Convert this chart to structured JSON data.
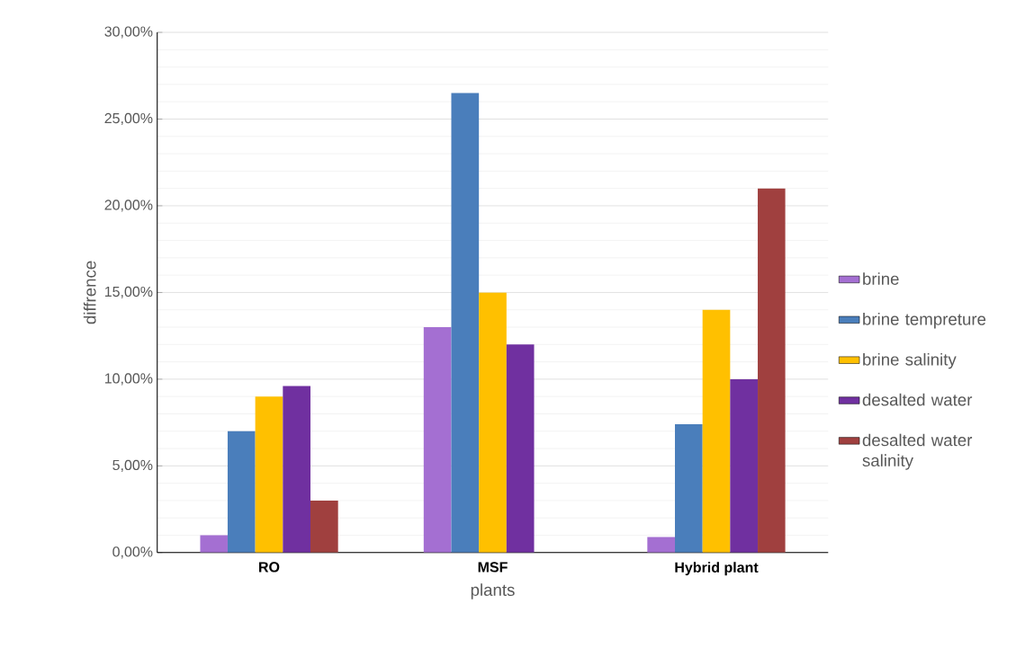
{
  "chart_data": {
    "type": "bar",
    "xlabel": "plants",
    "ylabel": "diffrence",
    "categories": [
      "RO",
      "MSF",
      "Hybrid plant"
    ],
    "series": [
      {
        "name": "brine",
        "color": "#a46fd2",
        "values": [
          1,
          13,
          0.9
        ]
      },
      {
        "name": "brine tempreture",
        "color": "#4a7ebb",
        "values": [
          7,
          26.5,
          7.4
        ]
      },
      {
        "name": "brine salinity",
        "color": "#ffc000",
        "values": [
          9,
          15,
          14
        ]
      },
      {
        "name": "desalted water",
        "color": "#7030a0",
        "values": [
          9.6,
          12,
          10
        ]
      },
      {
        "name": "desalted water salinity",
        "color": "#a0403f",
        "values": [
          3,
          0,
          21
        ]
      }
    ],
    "ylim": [
      0,
      30
    ],
    "yticks": [
      {
        "value": 0,
        "label": "0,00%"
      },
      {
        "value": 5,
        "label": "5,00%"
      },
      {
        "value": 10,
        "label": "10,00%"
      },
      {
        "value": 15,
        "label": "15,00%"
      },
      {
        "value": 20,
        "label": "20,00%"
      },
      {
        "value": 25,
        "label": "25,00%"
      },
      {
        "value": 30,
        "label": "30,00%"
      }
    ],
    "grid": "y",
    "legend": "right"
  }
}
